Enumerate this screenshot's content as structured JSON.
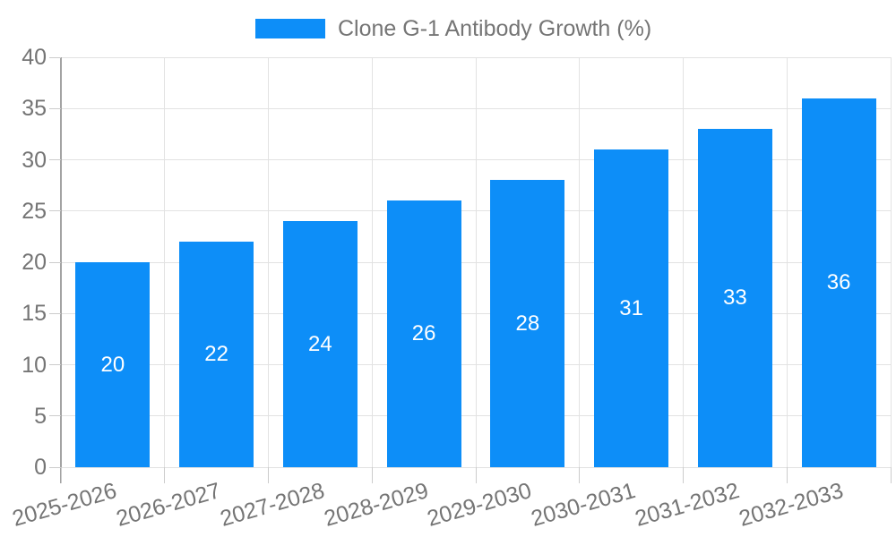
{
  "legend": {
    "label": "Clone G-1 Antibody Growth (%)"
  },
  "chart_data": {
    "type": "bar",
    "title": "Clone G-1 Antibody Growth (%)",
    "categories": [
      "2025-2026",
      "2026-2027",
      "2027-2028",
      "2028-2029",
      "2029-2030",
      "2030-2031",
      "2031-2032",
      "2032-2033"
    ],
    "series": [
      {
        "name": "Clone G-1 Antibody Growth (%)",
        "values": [
          20,
          22,
          24,
          26,
          28,
          31,
          33,
          36
        ]
      }
    ],
    "value_labels_shown": true,
    "xlabel": "",
    "ylabel": "",
    "ylim": [
      0,
      40
    ],
    "yticks": [
      0,
      5,
      10,
      15,
      20,
      25,
      30,
      35,
      40
    ],
    "grid": true,
    "legend_position": "top-center",
    "x_label_rotation_deg": -16
  },
  "style": {
    "bar_color": "#0d8ef8",
    "value_label_color": "#ffffff",
    "axis_text_color": "#757575",
    "gridline_color": "#e2e2e2",
    "tick_color": "#cccccc",
    "axis_line_color": "#a3a3a3",
    "background_color": "#ffffff"
  }
}
